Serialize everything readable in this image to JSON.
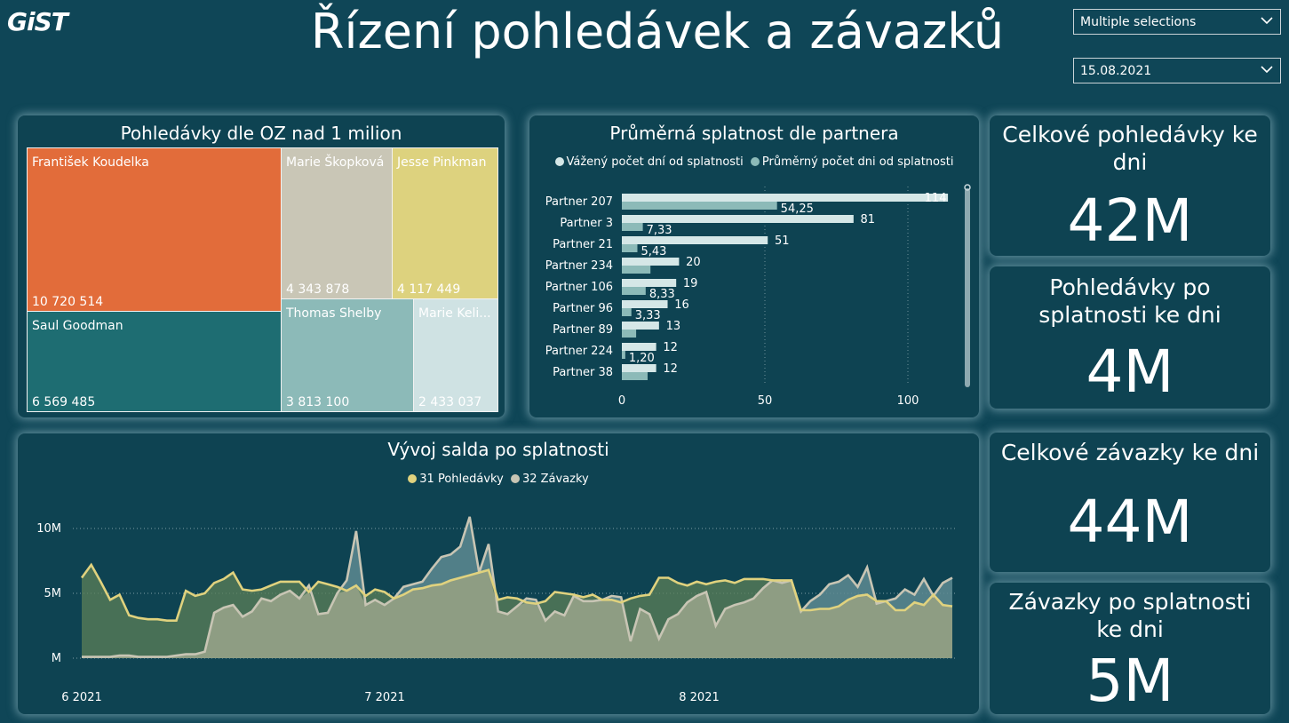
{
  "header": {
    "logo": "GiST",
    "title": "Řízení pohledávek a závazků",
    "slicer1_value": "Multiple selections",
    "slicer2_value": "15.08.2021"
  },
  "colors": {
    "background": "#0f4657",
    "card": "#0e4352",
    "yellow": "#e0d27e",
    "grey": "#c8c5b4",
    "bar_light": "#d5e7e7",
    "bar_mid": "#8cbab8"
  },
  "treemap": {
    "title": "Pohledávky dle OZ nad 1 milion",
    "items": [
      {
        "name": "František Koudelka",
        "value": "10 720 514",
        "color": "#e26c3a"
      },
      {
        "name": "Marie Škopková",
        "value": "4 343 878",
        "color": "#c9c6b6"
      },
      {
        "name": "Jesse Pinkman",
        "value": "4 117 449",
        "color": "#ddd27e"
      },
      {
        "name": "Saul Goodman",
        "value": "6 569 485",
        "color": "#1e6d72"
      },
      {
        "name": "Thomas Shelby",
        "value": "3 813 100",
        "color": "#8cbab8"
      },
      {
        "name": "Marie Keli...",
        "value": "2 433 037",
        "color": "#cfe2e3"
      }
    ]
  },
  "bar_chart": {
    "title": "Průměrná splatnost dle partnera",
    "legend": [
      {
        "name": "Vážený počet dní od splatnosti",
        "color": "#d5e7e7"
      },
      {
        "name": "Průměrný počet dni od splatnosti",
        "color": "#8cbab8"
      }
    ],
    "x_ticks": [
      "0",
      "50",
      "100"
    ]
  },
  "line_chart": {
    "title": "Vývoj salda po splatnosti",
    "legend": [
      {
        "name": "31 Pohledávky",
        "color": "#e0d27e"
      },
      {
        "name": "32 Závazky",
        "color": "#c8c5b4"
      }
    ],
    "y_ticks": [
      "10M",
      "5M",
      "M"
    ],
    "x_ticks": [
      "6 2021",
      "7 2021",
      "8 2021"
    ]
  },
  "kpis": [
    {
      "title": "Celkové pohledávky ke dni",
      "value": "42M"
    },
    {
      "title": "Pohledávky po splatnosti ke dni",
      "value": "4M"
    },
    {
      "title": "Celkové závazky ke dni",
      "value": "44M"
    },
    {
      "title": "Závazky po splatnosti ke dni",
      "value": "5M"
    }
  ],
  "chart_data": [
    {
      "type": "bar",
      "orientation": "horizontal",
      "title": "Průměrná splatnost dle partnera",
      "categories": [
        "Partner 207",
        "Partner 3",
        "Partner 21",
        "Partner 234",
        "Partner 106",
        "Partner 96",
        "Partner 89",
        "Partner 224",
        "Partner 38"
      ],
      "series": [
        {
          "name": "Vážený počet dní od splatnosti",
          "values": [
            114,
            81,
            51,
            20,
            19,
            16,
            13,
            12,
            12
          ],
          "labels": [
            "114",
            "81",
            "51",
            "20",
            "19",
            "16",
            "13",
            "12",
            "12"
          ]
        },
        {
          "name": "Průměrný počet dni od splatnosti",
          "values": [
            54.25,
            7.33,
            5.43,
            10,
            8.33,
            3.33,
            5,
            1.2,
            9
          ],
          "labels": [
            "54,25",
            "7,33",
            "5,43",
            "",
            "8,33",
            "3,33",
            "",
            "1,20",
            ""
          ]
        }
      ],
      "xlim": [
        0,
        120
      ],
      "legend": "top"
    },
    {
      "type": "area",
      "title": "Vývoj salda po splatnosti",
      "x_start": "2021-06-01",
      "x_end": "2021-08-28",
      "ylim": [
        0,
        11
      ],
      "y_unit": "M",
      "series": [
        {
          "name": "31 Pohledávky",
          "values": [
            6.2,
            7.2,
            5.9,
            4.5,
            4.9,
            3.3,
            3.1,
            3.0,
            3.0,
            2.9,
            2.9,
            5.2,
            4.8,
            5.0,
            5.8,
            6.1,
            6.6,
            5.3,
            5.2,
            5.3,
            5.6,
            5.9,
            5.9,
            5.9,
            5.1,
            5.9,
            5.7,
            5.5,
            5.2,
            5.6,
            4.8,
            5.3,
            5.1,
            4.6,
            4.9,
            5.3,
            5.4,
            5.6,
            5.7,
            6.0,
            6.2,
            6.4,
            6.6,
            6.8,
            4.5,
            4.7,
            4.6,
            4.3,
            4.2,
            4.4,
            5.1,
            5.0,
            4.9,
            4.7,
            4.9,
            4.5,
            4.5,
            4.3,
            4.6,
            4.8,
            4.9,
            6.2,
            6.2,
            5.8,
            5.6,
            5.9,
            5.7,
            5.9,
            6.0,
            5.8,
            6.1,
            6.1,
            6.1,
            6.0,
            6.0,
            6.0,
            3.7,
            3.7,
            3.8,
            3.8,
            4.0,
            4.5,
            4.8,
            4.9,
            4.4,
            4.4,
            3.7,
            3.7,
            4.3,
            4.1,
            4.9,
            4.1,
            4.0
          ],
          "color": "#e0d27e"
        },
        {
          "name": "32 Závazky",
          "values": [
            0.1,
            0.1,
            0.1,
            0.1,
            0.2,
            0.2,
            0.1,
            0.1,
            0.1,
            0.1,
            0.2,
            0.3,
            0.3,
            0.5,
            3.5,
            3.9,
            4.1,
            3.2,
            3.6,
            4.6,
            4.4,
            4.9,
            5.2,
            4.6,
            5.6,
            3.4,
            3.5,
            5.0,
            6.0,
            9.8,
            4.1,
            4.5,
            4.1,
            4.6,
            5.5,
            5.7,
            5.9,
            6.9,
            7.8,
            8.0,
            8.6,
            10.9,
            6.6,
            8.8,
            3.6,
            3.4,
            4.0,
            4.6,
            4.5,
            2.9,
            3.6,
            3.3,
            4.8,
            4.4,
            4.4,
            4.5,
            4.8,
            4.7,
            1.3,
            3.8,
            3.4,
            1.5,
            3.0,
            3.4,
            4.3,
            4.8,
            5.1,
            2.5,
            3.8,
            4.1,
            4.3,
            4.6,
            5.4,
            6.0,
            5.8,
            6.0,
            3.6,
            4.4,
            4.9,
            5.7,
            5.9,
            6.4,
            5.5,
            7.0,
            4.2,
            4.4,
            4.6,
            5.3,
            4.9,
            6.1,
            4.8,
            5.8,
            6.2
          ],
          "color": "#c8c5b4"
        }
      ],
      "x_tick_labels": [
        "6 2021",
        "7 2021",
        "8 2021"
      ],
      "y_tick_labels": [
        "10M",
        "5M",
        "M"
      ],
      "legend": "top"
    }
  ]
}
